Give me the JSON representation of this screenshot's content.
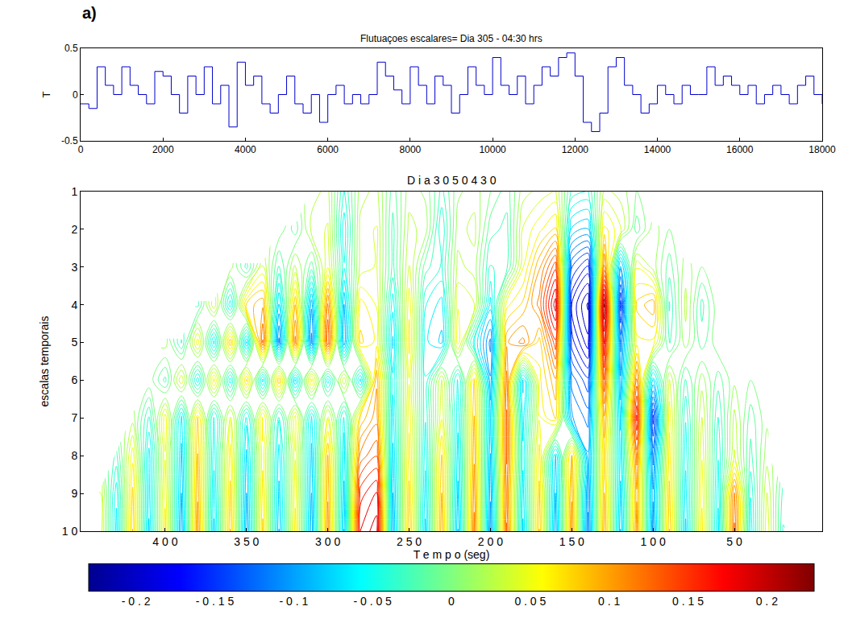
{
  "chart_data": [
    {
      "type": "line",
      "panel": "a)",
      "title": "Flutuaçoes escalares= Dia 305 - 04:30 hrs",
      "y_label": "T",
      "color": "#0000cc",
      "line_style": "steps",
      "x": [
        0,
        200,
        400,
        600,
        800,
        1000,
        1200,
        1400,
        1600,
        1800,
        2000,
        2200,
        2400,
        2600,
        2800,
        3000,
        3200,
        3400,
        3600,
        3800,
        4000,
        4200,
        4400,
        4600,
        4800,
        5000,
        5200,
        5400,
        5600,
        5800,
        6000,
        6200,
        6400,
        6600,
        6800,
        7000,
        7200,
        7400,
        7600,
        7800,
        8000,
        8200,
        8400,
        8600,
        8800,
        9000,
        9200,
        9400,
        9600,
        9800,
        10000,
        10200,
        10400,
        10600,
        10800,
        11000,
        11200,
        11400,
        11600,
        11800,
        12000,
        12200,
        12400,
        12600,
        12800,
        13000,
        13200,
        13400,
        13600,
        13800,
        14000,
        14200,
        14400,
        14600,
        14800,
        15000,
        15200,
        15400,
        15600,
        15800,
        16000,
        16200,
        16400,
        16600,
        16800,
        17000,
        17200,
        17400,
        17600,
        17800,
        18000
      ],
      "values": [
        -0.1,
        -0.15,
        0.3,
        0.1,
        0.0,
        0.3,
        0.1,
        0.0,
        -0.1,
        0.25,
        0.2,
        0.0,
        -0.2,
        0.2,
        0.0,
        0.3,
        -0.1,
        0.1,
        -0.35,
        0.35,
        0.1,
        0.2,
        -0.1,
        -0.2,
        0.0,
        0.2,
        -0.1,
        -0.2,
        0.0,
        -0.3,
        0.0,
        0.1,
        -0.1,
        0.0,
        -0.1,
        0.0,
        0.35,
        0.2,
        0.05,
        -0.1,
        0.3,
        0.1,
        -0.1,
        0.2,
        0.1,
        -0.2,
        0.0,
        0.3,
        0.1,
        0.0,
        0.4,
        0.1,
        0.0,
        0.2,
        -0.1,
        0.1,
        0.3,
        0.2,
        0.4,
        0.45,
        0.2,
        -0.3,
        -0.4,
        -0.2,
        0.3,
        0.4,
        0.1,
        0.0,
        -0.2,
        -0.1,
        0.1,
        0.0,
        -0.1,
        0.1,
        0.0,
        0.0,
        0.3,
        0.1,
        0.2,
        0.1,
        0.0,
        0.1,
        -0.1,
        0.0,
        0.1,
        0.0,
        -0.1,
        0.1,
        0.2,
        0.0,
        -0.1
      ],
      "xlim": [
        0,
        18000
      ],
      "xticks": [
        0,
        2000,
        4000,
        6000,
        8000,
        10000,
        12000,
        14000,
        16000,
        18000
      ],
      "ylim": [
        -0.5,
        0.5
      ],
      "yticks": [
        -0.5,
        0,
        0.5
      ]
    },
    {
      "type": "contour",
      "title": "D i a 3 0 5 0 4 3 0",
      "x_label": "T e m p o (seg)",
      "y_label": "escalas temporais",
      "x": [
        450,
        440,
        430,
        420,
        410,
        400,
        390,
        380,
        370,
        360,
        350,
        340,
        330,
        320,
        310,
        300,
        290,
        280,
        270,
        260,
        250,
        240,
        230,
        220,
        210,
        200,
        190,
        180,
        170,
        160,
        150,
        140,
        130,
        120,
        110,
        100,
        90,
        80,
        70,
        60,
        50,
        40,
        30,
        20,
        10
      ],
      "y": [
        1,
        2,
        3,
        4,
        5,
        6,
        7,
        8,
        9,
        10
      ],
      "z": [
        [
          null,
          null,
          null,
          null,
          null,
          null,
          null,
          null,
          null,
          null,
          null,
          null,
          null,
          null,
          0.02,
          0.03,
          -0.04,
          0.02,
          0.03,
          -0.02,
          0.02,
          0.01,
          -0.03,
          0.01,
          0.02,
          0.0,
          -0.02,
          0.02,
          0.03,
          0.04,
          -0.03,
          -0.04,
          0.03,
          0.02,
          0.0,
          null,
          null,
          null,
          null,
          null,
          null,
          null,
          null,
          null,
          null
        ],
        [
          null,
          null,
          null,
          null,
          null,
          null,
          null,
          null,
          null,
          null,
          null,
          null,
          0.01,
          -0.02,
          0.03,
          0.04,
          -0.06,
          0.03,
          0.04,
          -0.03,
          0.03,
          0.02,
          -0.05,
          0.02,
          0.03,
          -0.02,
          -0.03,
          0.04,
          0.06,
          0.08,
          -0.08,
          -0.09,
          0.07,
          0.04,
          -0.02,
          0.02,
          0.0,
          null,
          null,
          null,
          null,
          null,
          null,
          null,
          null
        ],
        [
          null,
          null,
          null,
          null,
          null,
          null,
          null,
          null,
          null,
          0.02,
          -0.03,
          0.04,
          -0.03,
          0.03,
          -0.02,
          0.05,
          -0.05,
          0.03,
          0.04,
          -0.03,
          0.04,
          -0.02,
          -0.04,
          0.03,
          0.02,
          -0.04,
          -0.03,
          0.05,
          0.1,
          0.15,
          -0.14,
          -0.17,
          0.12,
          -0.1,
          0.05,
          0.02,
          -0.02,
          0.02,
          0.0,
          null,
          null,
          null,
          null,
          null,
          null
        ],
        [
          null,
          null,
          null,
          null,
          null,
          null,
          null,
          -0.03,
          0.05,
          -0.06,
          0.08,
          0.1,
          -0.08,
          0.09,
          -0.1,
          0.12,
          -0.09,
          0.07,
          0.05,
          -0.06,
          0.06,
          -0.05,
          -0.07,
          0.05,
          0.04,
          -0.07,
          0.06,
          0.08,
          0.12,
          0.2,
          -0.18,
          -0.22,
          0.22,
          -0.16,
          0.08,
          0.1,
          -0.04,
          0.03,
          -0.03,
          0.01,
          null,
          null,
          null,
          null,
          null
        ],
        [
          null,
          null,
          null,
          null,
          null,
          0.02,
          -0.04,
          0.06,
          -0.07,
          0.09,
          -0.08,
          0.13,
          -0.12,
          0.12,
          -0.12,
          0.14,
          -0.1,
          0.08,
          0.06,
          -0.08,
          0.07,
          -0.06,
          -0.08,
          0.06,
          -0.05,
          -0.12,
          0.1,
          0.12,
          0.07,
          0.15,
          -0.16,
          -0.2,
          0.18,
          -0.12,
          0.06,
          0.06,
          -0.03,
          0.02,
          -0.02,
          0.01,
          0.0,
          null,
          null,
          null,
          null
        ],
        [
          null,
          null,
          null,
          null,
          0.01,
          -0.03,
          0.05,
          -0.06,
          0.07,
          -0.06,
          0.08,
          -0.07,
          0.09,
          -0.08,
          0.07,
          -0.06,
          0.05,
          -0.07,
          0.1,
          -0.06,
          0.05,
          -0.05,
          0.04,
          -0.06,
          0.08,
          -0.1,
          0.12,
          -0.08,
          0.06,
          0.1,
          -0.12,
          -0.15,
          0.14,
          -0.1,
          0.12,
          -0.08,
          0.04,
          -0.03,
          0.02,
          -0.02,
          0.01,
          0.0,
          null,
          null,
          null
        ],
        [
          null,
          null,
          null,
          0.02,
          -0.04,
          0.06,
          -0.07,
          0.08,
          -0.06,
          0.05,
          -0.06,
          0.07,
          -0.05,
          0.06,
          -0.07,
          0.05,
          -0.06,
          0.08,
          0.11,
          -0.07,
          0.06,
          -0.05,
          0.05,
          -0.06,
          0.09,
          -0.08,
          0.13,
          -0.07,
          0.05,
          0.08,
          -0.1,
          -0.12,
          0.1,
          -0.08,
          0.17,
          -0.16,
          0.06,
          -0.05,
          0.04,
          -0.04,
          0.03,
          -0.02,
          0.01,
          null,
          null
        ],
        [
          null,
          null,
          -0.03,
          0.06,
          -0.07,
          0.05,
          -0.08,
          0.09,
          -0.06,
          0.07,
          -0.08,
          0.06,
          -0.07,
          0.05,
          -0.08,
          0.09,
          -0.07,
          0.12,
          0.14,
          -0.08,
          0.07,
          -0.06,
          0.08,
          -0.07,
          0.1,
          -0.09,
          0.13,
          -0.06,
          0.07,
          -0.08,
          0.09,
          -0.1,
          0.08,
          -0.07,
          0.12,
          -0.12,
          0.07,
          -0.06,
          0.05,
          -0.05,
          0.04,
          -0.03,
          0.02,
          null,
          null
        ],
        [
          null,
          0.04,
          -0.06,
          0.08,
          -0.07,
          0.06,
          -0.09,
          0.1,
          -0.07,
          0.08,
          -0.09,
          0.07,
          -0.08,
          0.06,
          -0.09,
          0.1,
          -0.08,
          0.16,
          0.18,
          -0.09,
          0.08,
          -0.07,
          0.09,
          -0.08,
          0.11,
          -0.1,
          0.12,
          -0.07,
          0.08,
          -0.09,
          0.1,
          -0.11,
          0.09,
          -0.08,
          0.1,
          -0.1,
          0.08,
          -0.07,
          0.06,
          -0.06,
          0.12,
          -0.05,
          0.04,
          -0.03,
          null
        ],
        [
          null,
          0.05,
          -0.07,
          0.09,
          -0.08,
          0.07,
          -0.1,
          0.11,
          -0.08,
          0.09,
          -0.1,
          0.08,
          -0.09,
          0.07,
          -0.1,
          0.11,
          -0.09,
          0.18,
          0.2,
          -0.1,
          0.09,
          -0.08,
          0.1,
          -0.09,
          0.12,
          -0.11,
          0.13,
          -0.08,
          0.09,
          -0.1,
          0.11,
          -0.12,
          0.1,
          -0.09,
          0.11,
          -0.11,
          0.09,
          -0.08,
          0.07,
          -0.07,
          0.13,
          -0.06,
          0.05,
          -0.04,
          null
        ]
      ],
      "xlim": [
        452,
        -4
      ],
      "xticks": [
        {
          "value": 400,
          "label": "4 0 0"
        },
        {
          "value": 350,
          "label": "3 5 0"
        },
        {
          "value": 300,
          "label": "3 0 0"
        },
        {
          "value": 250,
          "label": "2 5 0"
        },
        {
          "value": 200,
          "label": "2 0 0"
        },
        {
          "value": 150,
          "label": "1 5 0"
        },
        {
          "value": 100,
          "label": "1 0 0"
        },
        {
          "value": 50,
          "label": "5 0"
        }
      ],
      "ylim": [
        10,
        1
      ],
      "yticks": [
        1,
        2,
        3,
        4,
        5,
        6,
        7,
        8,
        9,
        {
          "value": 10,
          "label": "1 0"
        }
      ],
      "zlim": [
        -0.23,
        0.23
      ],
      "zticks": [
        {
          "value": -0.2,
          "label": "- 0 . 2"
        },
        {
          "value": -0.15,
          "label": "- 0 . 1 5"
        },
        {
          "value": -0.1,
          "label": "- 0 . 1"
        },
        {
          "value": -0.05,
          "label": "- 0 . 0 5"
        },
        0,
        {
          "value": 0.05,
          "label": "0 . 0 5"
        },
        {
          "value": 0.1,
          "label": "0 . 1"
        },
        {
          "value": 0.15,
          "label": "0 . 1 5"
        },
        {
          "value": 0.2,
          "label": "0 . 2"
        }
      ]
    }
  ]
}
